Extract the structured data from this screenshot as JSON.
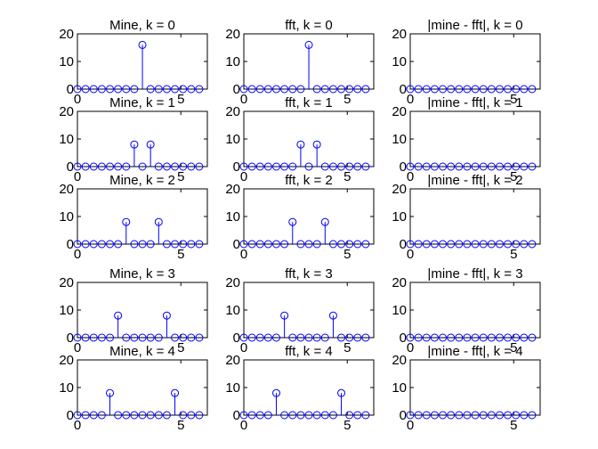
{
  "chart_data": [
    {
      "type": "stem",
      "title": "Mine, k = 0",
      "x": [
        0,
        0.393,
        0.785,
        1.178,
        1.571,
        1.963,
        2.356,
        2.749,
        3.142,
        3.534,
        3.927,
        4.32,
        4.712,
        5.105,
        5.498,
        5.89
      ],
      "values": [
        0,
        0,
        0,
        0,
        0,
        0,
        0,
        0,
        16,
        0,
        0,
        0,
        0,
        0,
        0,
        0
      ],
      "xlim": [
        0,
        6.28
      ],
      "ylim": [
        0,
        20
      ],
      "xticks": [
        0,
        5
      ],
      "yticks": [
        0,
        10,
        20
      ],
      "color": "#0000ff"
    },
    {
      "type": "stem",
      "title": "fft, k = 0",
      "x": [
        0,
        0.393,
        0.785,
        1.178,
        1.571,
        1.963,
        2.356,
        2.749,
        3.142,
        3.534,
        3.927,
        4.32,
        4.712,
        5.105,
        5.498,
        5.89
      ],
      "values": [
        0,
        0,
        0,
        0,
        0,
        0,
        0,
        0,
        16,
        0,
        0,
        0,
        0,
        0,
        0,
        0
      ],
      "xlim": [
        0,
        6.28
      ],
      "ylim": [
        0,
        20
      ],
      "xticks": [
        0,
        5
      ],
      "yticks": [
        0,
        10,
        20
      ],
      "color": "#0000ff"
    },
    {
      "type": "stem",
      "title": "|mine - fft|, k = 0",
      "x": [
        0,
        0.393,
        0.785,
        1.178,
        1.571,
        1.963,
        2.356,
        2.749,
        3.142,
        3.534,
        3.927,
        4.32,
        4.712,
        5.105,
        5.498,
        5.89
      ],
      "values": [
        0,
        0,
        0,
        0,
        0,
        0,
        0,
        0,
        0,
        0,
        0,
        0,
        0,
        0,
        0,
        0
      ],
      "xlim": [
        0,
        6.28
      ],
      "ylim": [
        0,
        20
      ],
      "xticks": [
        0,
        5
      ],
      "yticks": [
        0,
        10,
        20
      ],
      "color": "#0000ff"
    },
    {
      "type": "stem",
      "title": "Mine, k = 1",
      "x": [
        0,
        0.393,
        0.785,
        1.178,
        1.571,
        1.963,
        2.356,
        2.749,
        3.142,
        3.534,
        3.927,
        4.32,
        4.712,
        5.105,
        5.498,
        5.89
      ],
      "values": [
        0,
        0,
        0,
        0,
        0,
        0,
        0,
        8,
        0,
        8,
        0,
        0,
        0,
        0,
        0,
        0
      ],
      "xlim": [
        0,
        6.28
      ],
      "ylim": [
        0,
        20
      ],
      "xticks": [
        0,
        5
      ],
      "yticks": [
        0,
        10,
        20
      ],
      "color": "#0000ff"
    },
    {
      "type": "stem",
      "title": "fft, k = 1",
      "x": [
        0,
        0.393,
        0.785,
        1.178,
        1.571,
        1.963,
        2.356,
        2.749,
        3.142,
        3.534,
        3.927,
        4.32,
        4.712,
        5.105,
        5.498,
        5.89
      ],
      "values": [
        0,
        0,
        0,
        0,
        0,
        0,
        0,
        8,
        0,
        8,
        0,
        0,
        0,
        0,
        0,
        0
      ],
      "xlim": [
        0,
        6.28
      ],
      "ylim": [
        0,
        20
      ],
      "xticks": [
        0,
        5
      ],
      "yticks": [
        0,
        10,
        20
      ],
      "color": "#0000ff"
    },
    {
      "type": "stem",
      "title": "|mine - fft|, k = 1",
      "x": [
        0,
        0.393,
        0.785,
        1.178,
        1.571,
        1.963,
        2.356,
        2.749,
        3.142,
        3.534,
        3.927,
        4.32,
        4.712,
        5.105,
        5.498,
        5.89
      ],
      "values": [
        0,
        0,
        0,
        0,
        0,
        0,
        0,
        0,
        0,
        0,
        0,
        0,
        0,
        0,
        0,
        0
      ],
      "xlim": [
        0,
        6.28
      ],
      "ylim": [
        0,
        20
      ],
      "xticks": [
        0,
        5
      ],
      "yticks": [
        0,
        10,
        20
      ],
      "color": "#0000ff"
    },
    {
      "type": "stem",
      "title": "Mine, k = 2",
      "x": [
        0,
        0.393,
        0.785,
        1.178,
        1.571,
        1.963,
        2.356,
        2.749,
        3.142,
        3.534,
        3.927,
        4.32,
        4.712,
        5.105,
        5.498,
        5.89
      ],
      "values": [
        0,
        0,
        0,
        0,
        0,
        0,
        8,
        0,
        0,
        0,
        8,
        0,
        0,
        0,
        0,
        0
      ],
      "xlim": [
        0,
        6.28
      ],
      "ylim": [
        0,
        20
      ],
      "xticks": [
        0,
        5
      ],
      "yticks": [
        0,
        10,
        20
      ],
      "color": "#0000ff"
    },
    {
      "type": "stem",
      "title": "fft, k = 2",
      "x": [
        0,
        0.393,
        0.785,
        1.178,
        1.571,
        1.963,
        2.356,
        2.749,
        3.142,
        3.534,
        3.927,
        4.32,
        4.712,
        5.105,
        5.498,
        5.89
      ],
      "values": [
        0,
        0,
        0,
        0,
        0,
        0,
        8,
        0,
        0,
        0,
        8,
        0,
        0,
        0,
        0,
        0
      ],
      "xlim": [
        0,
        6.28
      ],
      "ylim": [
        0,
        20
      ],
      "xticks": [
        0,
        5
      ],
      "yticks": [
        0,
        10,
        20
      ],
      "color": "#0000ff"
    },
    {
      "type": "stem",
      "title": "|mine - fft|, k = 2",
      "x": [
        0,
        0.393,
        0.785,
        1.178,
        1.571,
        1.963,
        2.356,
        2.749,
        3.142,
        3.534,
        3.927,
        4.32,
        4.712,
        5.105,
        5.498,
        5.89
      ],
      "values": [
        0,
        0,
        0,
        0,
        0,
        0,
        0,
        0,
        0,
        0,
        0,
        0,
        0,
        0,
        0,
        0
      ],
      "xlim": [
        0,
        6.28
      ],
      "ylim": [
        0,
        20
      ],
      "xticks": [
        0,
        5
      ],
      "yticks": [
        0,
        10,
        20
      ],
      "color": "#0000ff"
    },
    {
      "type": "stem",
      "title": "Mine, k = 3",
      "x": [
        0,
        0.393,
        0.785,
        1.178,
        1.571,
        1.963,
        2.356,
        2.749,
        3.142,
        3.534,
        3.927,
        4.32,
        4.712,
        5.105,
        5.498,
        5.89
      ],
      "values": [
        0,
        0,
        0,
        0,
        0,
        8,
        0,
        0,
        0,
        0,
        0,
        8,
        0,
        0,
        0,
        0
      ],
      "xlim": [
        0,
        6.28
      ],
      "ylim": [
        0,
        20
      ],
      "xticks": [
        0,
        5
      ],
      "yticks": [
        0,
        10,
        20
      ],
      "color": "#0000ff"
    },
    {
      "type": "stem",
      "title": "fft, k = 3",
      "x": [
        0,
        0.393,
        0.785,
        1.178,
        1.571,
        1.963,
        2.356,
        2.749,
        3.142,
        3.534,
        3.927,
        4.32,
        4.712,
        5.105,
        5.498,
        5.89
      ],
      "values": [
        0,
        0,
        0,
        0,
        0,
        8,
        0,
        0,
        0,
        0,
        0,
        8,
        0,
        0,
        0,
        0
      ],
      "xlim": [
        0,
        6.28
      ],
      "ylim": [
        0,
        20
      ],
      "xticks": [
        0,
        5
      ],
      "yticks": [
        0,
        10,
        20
      ],
      "color": "#0000ff"
    },
    {
      "type": "stem",
      "title": "|mine - fft|, k = 3",
      "x": [
        0,
        0.393,
        0.785,
        1.178,
        1.571,
        1.963,
        2.356,
        2.749,
        3.142,
        3.534,
        3.927,
        4.32,
        4.712,
        5.105,
        5.498,
        5.89
      ],
      "values": [
        0,
        0,
        0,
        0,
        0,
        0,
        0,
        0,
        0,
        0,
        0,
        0,
        0,
        0,
        0,
        0
      ],
      "xlim": [
        0,
        6.28
      ],
      "ylim": [
        0,
        20
      ],
      "xticks": [
        0,
        5
      ],
      "yticks": [
        0,
        10,
        20
      ],
      "color": "#0000ff"
    },
    {
      "type": "stem",
      "title": "Mine, k = 4",
      "x": [
        0,
        0.393,
        0.785,
        1.178,
        1.571,
        1.963,
        2.356,
        2.749,
        3.142,
        3.534,
        3.927,
        4.32,
        4.712,
        5.105,
        5.498,
        5.89
      ],
      "values": [
        0,
        0,
        0,
        0,
        8,
        0,
        0,
        0,
        0,
        0,
        0,
        0,
        8,
        0,
        0,
        0
      ],
      "xlim": [
        0,
        6.28
      ],
      "ylim": [
        0,
        20
      ],
      "xticks": [
        0,
        5
      ],
      "yticks": [
        0,
        10,
        20
      ],
      "color": "#0000ff"
    },
    {
      "type": "stem",
      "title": "fft, k = 4",
      "x": [
        0,
        0.393,
        0.785,
        1.178,
        1.571,
        1.963,
        2.356,
        2.749,
        3.142,
        3.534,
        3.927,
        4.32,
        4.712,
        5.105,
        5.498,
        5.89
      ],
      "values": [
        0,
        0,
        0,
        0,
        8,
        0,
        0,
        0,
        0,
        0,
        0,
        0,
        8,
        0,
        0,
        0
      ],
      "xlim": [
        0,
        6.28
      ],
      "ylim": [
        0,
        20
      ],
      "xticks": [
        0,
        5
      ],
      "yticks": [
        0,
        10,
        20
      ],
      "color": "#0000ff"
    },
    {
      "type": "stem",
      "title": "|mine - fft|, k = 4",
      "x": [
        0,
        0.393,
        0.785,
        1.178,
        1.571,
        1.963,
        2.356,
        2.749,
        3.142,
        3.534,
        3.927,
        4.32,
        4.712,
        5.105,
        5.498,
        5.89
      ],
      "values": [
        0,
        0,
        0,
        0,
        0,
        0,
        0,
        0,
        0,
        0,
        0,
        0,
        0,
        0,
        0,
        0
      ],
      "xlim": [
        0,
        6.28
      ],
      "ylim": [
        0,
        20
      ],
      "xticks": [
        0,
        5
      ],
      "yticks": [
        0,
        10,
        20
      ],
      "color": "#0000ff"
    }
  ]
}
